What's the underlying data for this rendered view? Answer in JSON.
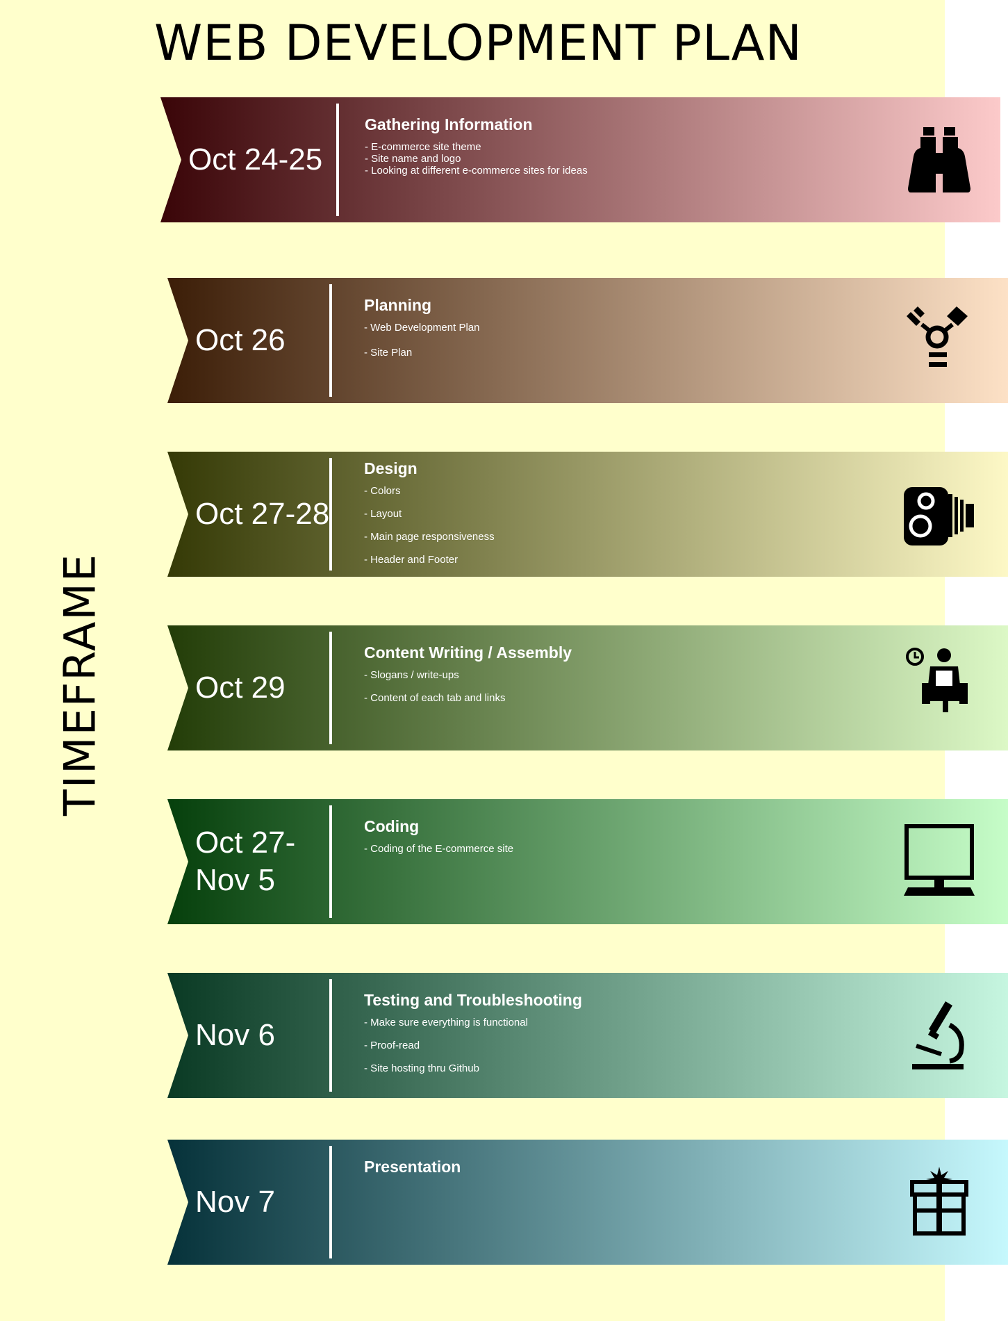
{
  "title": "WEB DEVELOPMENT PLAN",
  "side_label": "TIMEFRAME",
  "colors": {
    "background": "#ffffcc",
    "row_gradients": [
      [
        "#3a0508",
        "#fccaca"
      ],
      [
        "#3c1e08",
        "#fde1c6"
      ],
      [
        "#353a06",
        "#fdf8c6"
      ],
      [
        "#233d08",
        "#dcf8c6"
      ],
      [
        "#06400c",
        "#c6fdc8"
      ],
      [
        "#0a3a24",
        "#c6f6e0"
      ],
      [
        "#06323a",
        "#c6f8fd"
      ]
    ]
  },
  "rows": [
    {
      "date_line1": "Oct 24-25",
      "date_line2": "",
      "title": "Gathering Information",
      "items": [
        "- E-commerce site theme",
        "- Site name and logo",
        "- Looking at different e-commerce sites for ideas"
      ],
      "icon": "binoculars-icon"
    },
    {
      "date_line1": "Oct 26",
      "date_line2": "",
      "title": "Planning",
      "items": [
        "- Web Development Plan",
        "- Site Plan"
      ],
      "icon": "firewire-icon"
    },
    {
      "date_line1": "Oct 27-28",
      "date_line2": "",
      "title": "Design",
      "items": [
        "- Colors",
        "- Layout",
        "- Main page responsiveness",
        "- Header and Footer"
      ],
      "icon": "movie-camera-icon"
    },
    {
      "date_line1": "Oct 29",
      "date_line2": "",
      "title": "Content Writing / Assembly",
      "items": [
        "- Slogans / write-ups",
        "- Content of each tab and links"
      ],
      "icon": "waiting-room-icon"
    },
    {
      "date_line1": "Oct 27-",
      "date_line2": "Nov 5",
      "title": "Coding",
      "items": [
        "- Coding of the E-commerce site"
      ],
      "icon": "computer-monitor-icon"
    },
    {
      "date_line1": "Nov 6",
      "date_line2": "",
      "title": "Testing and Troubleshooting",
      "items": [
        "- Make sure everything is functional",
        "- Proof-read",
        "- Site hosting thru Github"
      ],
      "icon": "microscope-icon"
    },
    {
      "date_line1": "Nov 7",
      "date_line2": "",
      "title": "Presentation",
      "items": [],
      "icon": "gift-icon"
    }
  ]
}
